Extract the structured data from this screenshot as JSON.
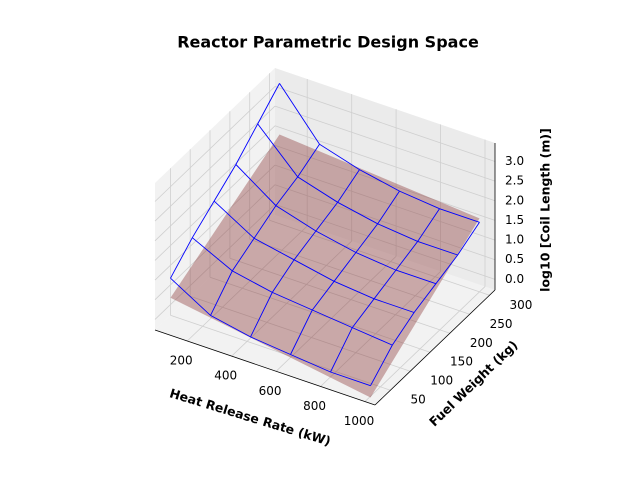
{
  "chart_data": {
    "type": "surface3d",
    "title": "Reactor Parametric Design Space",
    "xlabel": "Heat Release Rate (kW)",
    "ylabel": "Fuel Weight (kg)",
    "zlabel": "log10 [Coil Length (m)]",
    "xlim": [
      55,
      1045
    ],
    "ylim": [
      11,
      314
    ],
    "zlim": [
      -0.27,
      3.47
    ],
    "xticks": [
      200,
      400,
      600,
      800,
      1000
    ],
    "yticks": [
      50,
      100,
      150,
      200,
      250,
      300
    ],
    "zticks": [
      {
        "value": 0,
        "label": "0.0"
      },
      0.5,
      {
        "value": 1,
        "label": "1.0"
      },
      1.5,
      {
        "value": 2,
        "label": "2.0"
      },
      2.5,
      {
        "value": 3,
        "label": "3.0"
      }
    ],
    "grid": true,
    "series": [
      {
        "style": "surface",
        "color": "#8b3a3a",
        "alpha": 0.4,
        "x": [
          100,
          1000
        ],
        "y": [
          25,
          300
        ],
        "z": [
          [
            0.5,
            -0.3
          ],
          [
            2.0,
            1.6
          ]
        ]
      },
      {
        "style": "wireframe",
        "color": "#0000ff",
        "x": [
          100,
          280,
          460,
          640,
          820,
          1000
        ],
        "y": [
          25,
          80,
          135,
          190,
          245,
          300
        ],
        "z": [
          [
            1.0,
            0.4,
            0.2,
            0.1,
            0.0,
            0.0
          ],
          [
            1.5,
            1.0,
            0.8,
            0.7,
            0.6,
            0.5
          ],
          [
            1.9,
            1.3,
            1.1,
            0.9,
            0.8,
            0.8
          ],
          [
            2.3,
            1.6,
            1.3,
            1.1,
            1.0,
            1.0
          ],
          [
            2.8,
            1.8,
            1.5,
            1.3,
            1.2,
            1.2
          ],
          [
            3.3,
            2.1,
            1.8,
            1.6,
            1.5,
            1.5
          ]
        ]
      }
    ]
  }
}
